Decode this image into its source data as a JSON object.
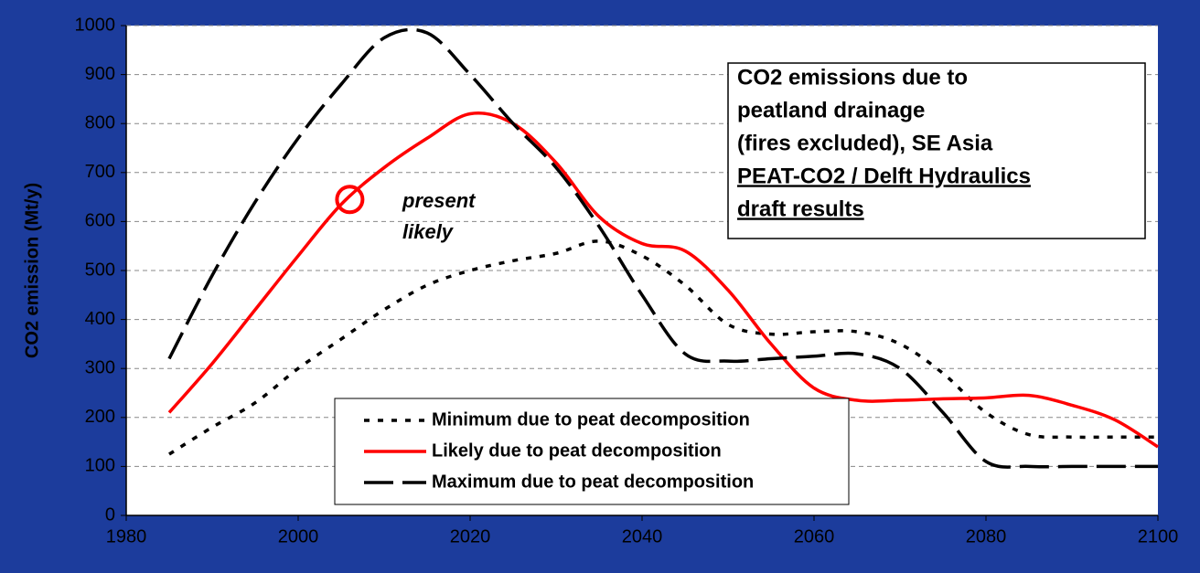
{
  "chart_data": {
    "type": "line",
    "title": [
      "CO2 emissions due to",
      "peatland drainage",
      "(fires excluded), SE Asia"
    ],
    "subtitle": [
      "PEAT-CO2 / Delft Hydraulics",
      "draft results"
    ],
    "ylabel": "CO2 emission (Mt/y)",
    "annotation": {
      "lines": [
        "present",
        "likely"
      ],
      "x": 2006,
      "y": 645,
      "color": "#ff0000"
    },
    "x": [
      1985,
      1990,
      1995,
      2000,
      2005,
      2010,
      2015,
      2020,
      2025,
      2030,
      2035,
      2040,
      2045,
      2050,
      2055,
      2060,
      2065,
      2070,
      2075,
      2080,
      2085,
      2090,
      2095,
      2100
    ],
    "series": [
      {
        "name": "Minimum due to peat decomposition",
        "color": "#000000",
        "dash": "short",
        "values": [
          125,
          180,
          230,
          300,
          360,
          420,
          470,
          500,
          520,
          535,
          560,
          530,
          470,
          390,
          370,
          375,
          375,
          350,
          290,
          210,
          165,
          160,
          160,
          160
        ]
      },
      {
        "name": "Likely due to peat decomposition",
        "color": "#ff0000",
        "dash": "solid",
        "values": [
          210,
          310,
          420,
          530,
          635,
          710,
          770,
          820,
          800,
          720,
          610,
          555,
          540,
          460,
          350,
          260,
          235,
          235,
          238,
          240,
          245,
          225,
          195,
          140
        ]
      },
      {
        "name": "Maximum due to peat decomposition",
        "color": "#000000",
        "dash": "long",
        "values": [
          320,
          490,
          640,
          770,
          880,
          975,
          985,
          900,
          800,
          710,
          590,
          450,
          330,
          315,
          320,
          325,
          330,
          300,
          210,
          110,
          100,
          100,
          100,
          100
        ]
      }
    ],
    "xlim": [
      1980,
      2100
    ],
    "xticks": [
      1980,
      2000,
      2020,
      2040,
      2060,
      2080,
      2100
    ],
    "ylim": [
      0,
      1000
    ],
    "yticks": [
      0,
      100,
      200,
      300,
      400,
      500,
      600,
      700,
      800,
      900,
      1000
    ],
    "grid": true,
    "legend": "lower center"
  }
}
